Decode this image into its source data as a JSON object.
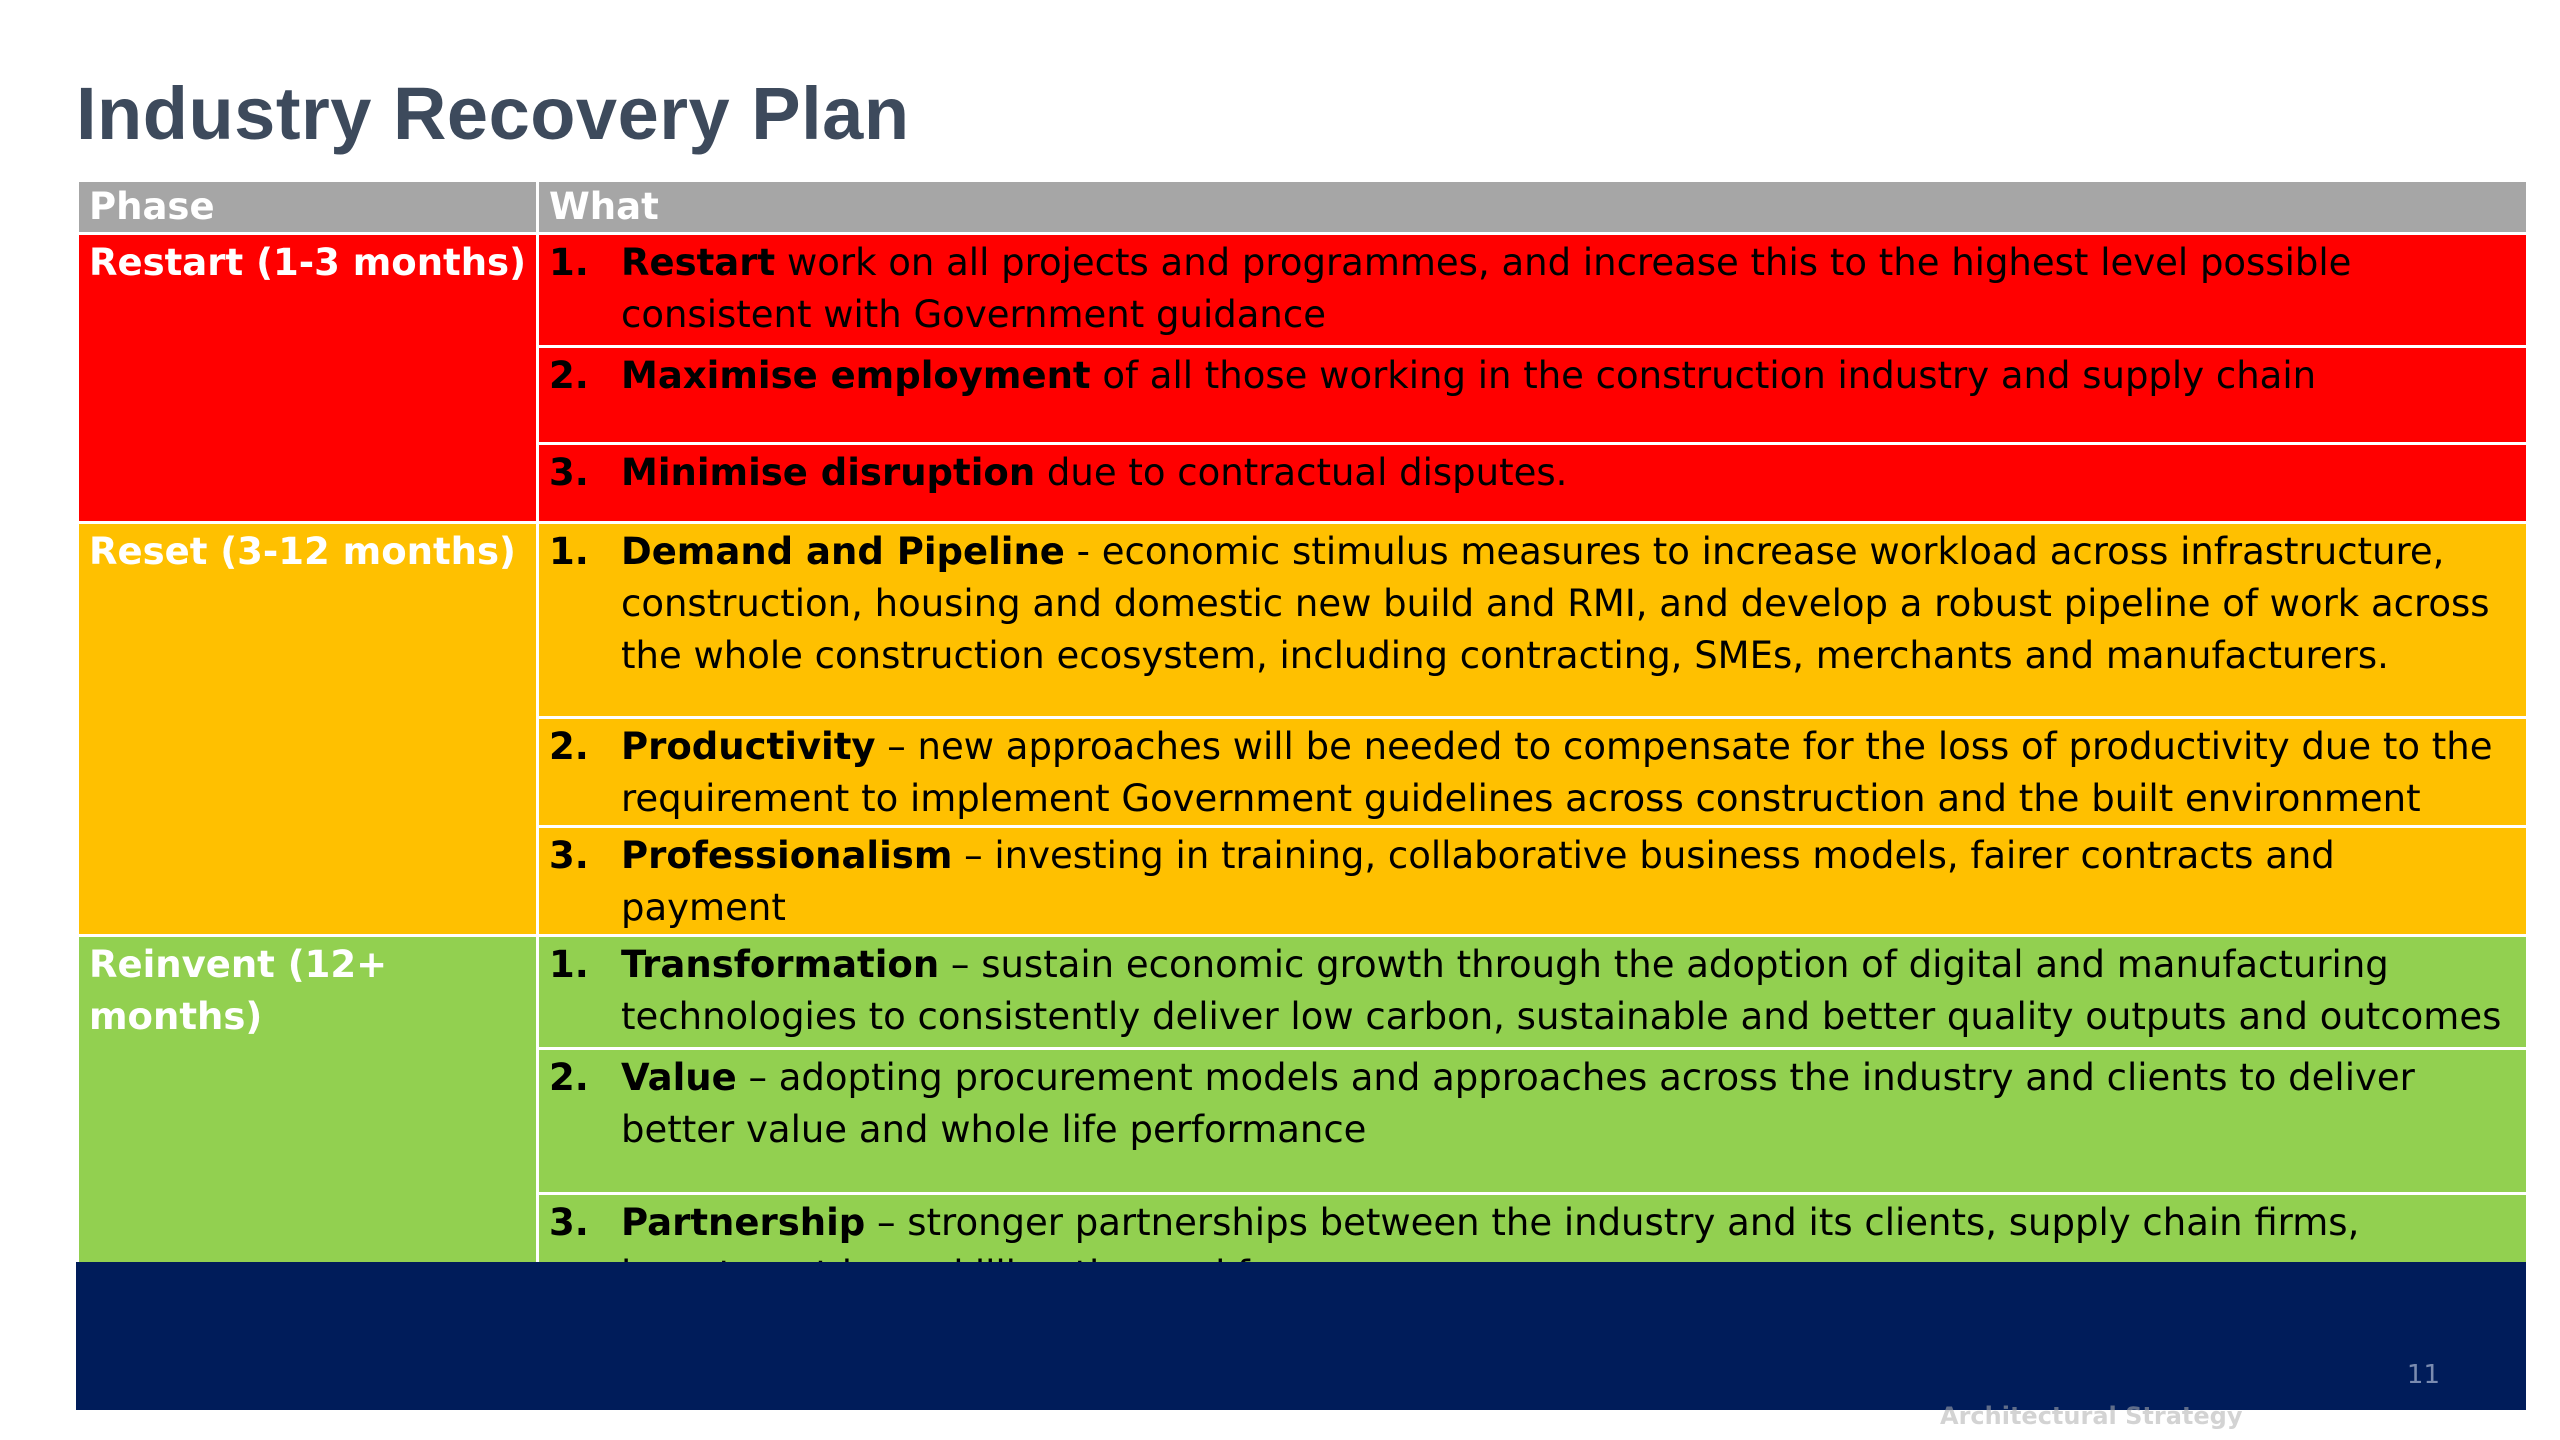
{
  "title": "Industry Recovery Plan",
  "table": {
    "headers": [
      "Phase",
      "What"
    ],
    "phases": [
      {
        "name": "Restart (1-3 months)",
        "color": "#ff0000",
        "items": [
          {
            "num": "1.",
            "bold": "Restart",
            "text": " work on all projects and programmes, and increase this to the highest level possible consistent with Government guidance"
          },
          {
            "num": "2.",
            "bold": "Maximise employment",
            "text": " of all those working in the construction industry and supply chain"
          },
          {
            "num": "3.",
            "bold": "Minimise disruption",
            "text": " due to contractual disputes."
          }
        ]
      },
      {
        "name": "Reset (3-12 months)",
        "color": "#ffc000",
        "items": [
          {
            "num": "1.",
            "bold": "Demand and Pipeline",
            "text": " - economic stimulus measures to increase workload across infrastructure, construction, housing and domestic new build and RMI, and develop a robust pipeline of work across the whole construction ecosystem, including contracting, SMEs, merchants and manufacturers."
          },
          {
            "num": "2.",
            "bold": "Productivity",
            "text": " – new approaches will be needed to compensate for the loss of productivity due to the requirement to implement Government guidelines across construction and the built environment"
          },
          {
            "num": "3.",
            "bold": "Professionalism",
            "text": " – investing in training, collaborative business models, fairer contracts and payment"
          }
        ]
      },
      {
        "name": "Reinvent (12+ months)",
        "color": "#92d050",
        "items": [
          {
            "num": "1.",
            "bold": "Transformation",
            "text": " – sustain economic growth through the adoption of digital and manufacturing technologies to consistently deliver low carbon, sustainable and better quality outputs and outcomes"
          },
          {
            "num": "2.",
            "bold": "Value",
            "text": " – adopting procurement models and approaches across the industry and clients to deliver better value and whole life performance"
          },
          {
            "num": "3.",
            "bold": "Partnership",
            "text": " – stronger partnerships between the industry and its clients, supply chain firms, investment in upskilling the workforce"
          }
        ]
      }
    ]
  },
  "footer": {
    "page_number": "11",
    "band_color": "#001c5a",
    "faint_text": "Architectural Strategy"
  }
}
